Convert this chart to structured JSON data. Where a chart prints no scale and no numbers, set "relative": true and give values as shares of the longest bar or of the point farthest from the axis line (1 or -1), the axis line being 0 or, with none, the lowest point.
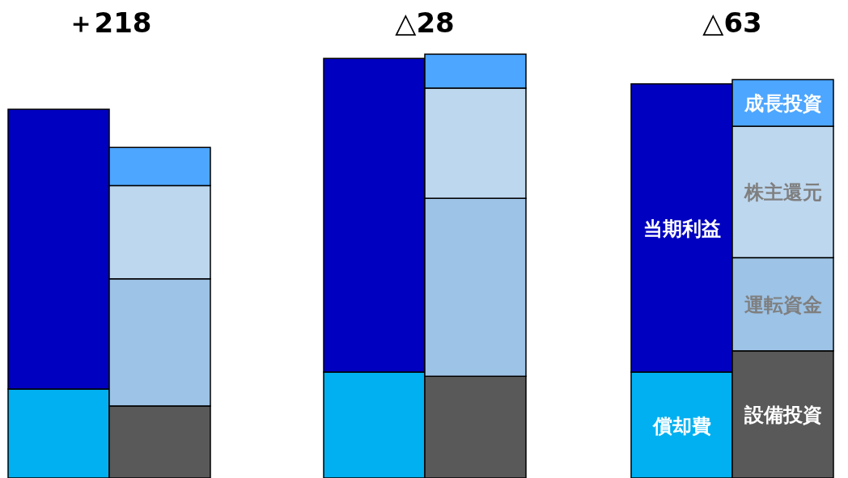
{
  "chart_data": {
    "type": "bar",
    "stacked": true,
    "relative": true,
    "categories": [
      null,
      null,
      null,
      null,
      null,
      null
    ],
    "series": [
      {
        "name": "償却費",
        "color": "#00b0f0",
        "values": [
          0.21,
          null,
          0.25,
          null,
          0.25,
          null
        ]
      },
      {
        "name": "当期利益",
        "color": "#0000c0",
        "values": [
          0.66,
          null,
          0.74,
          null,
          0.68,
          null
        ]
      },
      {
        "name": "設備投資",
        "color": "#595959",
        "values": [
          null,
          0.17,
          null,
          0.24,
          null,
          0.3
        ]
      },
      {
        "name": "運転資金",
        "color": "#9dc3e6",
        "values": [
          null,
          0.3,
          null,
          0.42,
          null,
          0.22
        ]
      },
      {
        "name": "株主還元",
        "color": "#bdd7ee",
        "values": [
          null,
          0.22,
          null,
          0.26,
          null,
          0.31
        ]
      },
      {
        "name": "成長投資",
        "color": "#4da6ff",
        "values": [
          null,
          0.09,
          null,
          0.08,
          null,
          0.11
        ]
      }
    ],
    "annotations": [
      "＋218",
      "△28",
      "△63"
    ]
  }
}
